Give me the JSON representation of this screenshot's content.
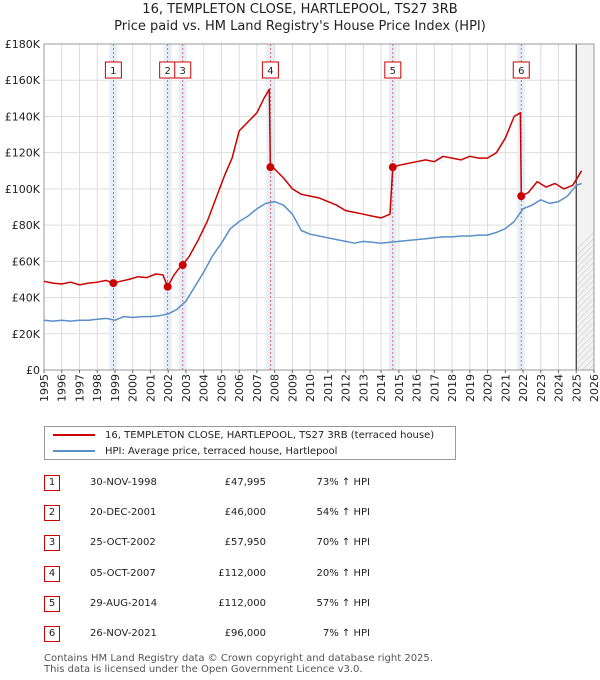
{
  "title": {
    "line1": "16, TEMPLETON CLOSE, HARTLEPOOL, TS27 3RB",
    "line2": "Price paid vs. HM Land Registry's House Price Index (HPI)"
  },
  "colors": {
    "price_line": "#cc0000",
    "hpi_line": "#5b8fc9",
    "sale_shade": "#e8eef8",
    "marker_border": "#cc0000",
    "grid": "#dddddd"
  },
  "legend": {
    "price_label": "16, TEMPLETON CLOSE, HARTLEPOOL, TS27 3RB (terraced house)",
    "hpi_label": "HPI: Average price, terraced house, Hartlepool"
  },
  "sales": [
    {
      "num": "1",
      "date": "30-NOV-1998",
      "price": "£47,995",
      "hpi": "73% ↑ HPI"
    },
    {
      "num": "2",
      "date": "20-DEC-2001",
      "price": "£46,000",
      "hpi": "54% ↑ HPI"
    },
    {
      "num": "3",
      "date": "25-OCT-2002",
      "price": "£57,950",
      "hpi": "70% ↑ HPI"
    },
    {
      "num": "4",
      "date": "05-OCT-2007",
      "price": "£112,000",
      "hpi": "20% ↑ HPI"
    },
    {
      "num": "5",
      "date": "29-AUG-2014",
      "price": "£112,000",
      "hpi": "57% ↑ HPI"
    },
    {
      "num": "6",
      "date": "26-NOV-2021",
      "price": "£96,000",
      "hpi": "7% ↑ HPI"
    }
  ],
  "footer": {
    "line1": "Contains HM Land Registry data © Crown copyright and database right 2025.",
    "line2": "This data is licensed under the Open Government Licence v3.0."
  },
  "chart_data": {
    "type": "line",
    "title": "16, TEMPLETON CLOSE, HARTLEPOOL, TS27 3RB",
    "subtitle": "Price paid vs. HM Land Registry's House Price Index (HPI)",
    "xlabel": "",
    "ylabel": "",
    "xlim": [
      1995,
      2026
    ],
    "ylim": [
      0,
      180000
    ],
    "grid": true,
    "legend_position": "below",
    "yticks": [
      0,
      20000,
      40000,
      60000,
      80000,
      100000,
      120000,
      140000,
      160000,
      180000
    ],
    "ytick_labels": [
      "£0",
      "£20K",
      "£40K",
      "£60K",
      "£80K",
      "£100K",
      "£120K",
      "£140K",
      "£160K",
      "£180K"
    ],
    "xticks": [
      1995,
      1996,
      1997,
      1998,
      1999,
      2000,
      2001,
      2002,
      2003,
      2004,
      2005,
      2006,
      2007,
      2008,
      2009,
      2010,
      2011,
      2012,
      2013,
      2014,
      2015,
      2016,
      2017,
      2018,
      2019,
      2020,
      2021,
      2022,
      2023,
      2024,
      2025,
      2026
    ],
    "sale_points": [
      {
        "label": "1",
        "x": 1998.91,
        "y": 47995
      },
      {
        "label": "2",
        "x": 2001.97,
        "y": 46000
      },
      {
        "label": "3",
        "x": 2002.82,
        "y": 57950
      },
      {
        "label": "4",
        "x": 2007.76,
        "y": 112000
      },
      {
        "label": "5",
        "x": 2014.66,
        "y": 112000
      },
      {
        "label": "6",
        "x": 2021.9,
        "y": 96000
      }
    ],
    "series": [
      {
        "name": "16, TEMPLETON CLOSE, HARTLEPOOL, TS27 3RB (terraced house)",
        "x": [
          1995,
          1995.5,
          1996,
          1996.5,
          1997,
          1997.5,
          1998,
          1998.5,
          1998.91,
          1999.3,
          1999.8,
          2000.3,
          2000.8,
          2001.3,
          2001.7,
          2001.97,
          2002.3,
          2002.6,
          2002.82,
          2003.2,
          2003.7,
          2004.2,
          2004.7,
          2005.2,
          2005.6,
          2006.0,
          2006.5,
          2007.0,
          2007.4,
          2007.7,
          2007.76,
          2008.0,
          2008.5,
          2009.0,
          2009.5,
          2010.0,
          2010.5,
          2011.0,
          2011.5,
          2012.0,
          2012.5,
          2013.0,
          2013.5,
          2014.0,
          2014.5,
          2014.66,
          2015.0,
          2015.5,
          2016.0,
          2016.5,
          2017.0,
          2017.5,
          2018.0,
          2018.5,
          2019.0,
          2019.5,
          2020.0,
          2020.5,
          2021.0,
          2021.5,
          2021.85,
          2021.9,
          2022.3,
          2022.8,
          2023.3,
          2023.8,
          2024.3,
          2024.8,
          2025.3
        ],
        "y": [
          49000,
          48000,
          47500,
          48500,
          47000,
          48000,
          48500,
          49500,
          47995,
          49000,
          50000,
          51500,
          51000,
          53000,
          52500,
          46000,
          52000,
          56000,
          57950,
          63000,
          72000,
          82000,
          95000,
          108000,
          117000,
          132000,
          137000,
          142000,
          150000,
          155000,
          112000,
          111000,
          106000,
          100000,
          97000,
          96000,
          95000,
          93000,
          91000,
          88000,
          87000,
          86000,
          85000,
          84000,
          86000,
          112000,
          113000,
          114000,
          115000,
          116000,
          115000,
          118000,
          117000,
          116000,
          118000,
          117000,
          117000,
          120000,
          128000,
          140000,
          142000,
          96000,
          98000,
          104000,
          101000,
          103000,
          100000,
          102000,
          110000
        ]
      },
      {
        "name": "HPI: Average price, terraced house, Hartlepool",
        "x": [
          1995,
          1995.5,
          1996,
          1996.5,
          1997,
          1997.5,
          1998,
          1998.5,
          1999,
          1999.5,
          2000,
          2000.5,
          2001,
          2001.5,
          2002,
          2002.5,
          2003,
          2003.5,
          2004,
          2004.5,
          2005,
          2005.5,
          2006,
          2006.5,
          2007,
          2007.5,
          2008,
          2008.5,
          2009,
          2009.5,
          2010,
          2010.5,
          2011,
          2011.5,
          2012,
          2012.5,
          2013,
          2013.5,
          2014,
          2014.5,
          2015,
          2015.5,
          2016,
          2016.5,
          2017,
          2017.5,
          2018,
          2018.5,
          2019,
          2019.5,
          2020,
          2020.5,
          2021,
          2021.5,
          2022,
          2022.5,
          2023,
          2023.5,
          2024,
          2024.5,
          2025,
          2025.3
        ],
        "y": [
          27500,
          27000,
          27500,
          27000,
          27500,
          27500,
          28000,
          28500,
          27500,
          29500,
          29000,
          29500,
          29500,
          30000,
          31000,
          33500,
          38000,
          46000,
          54000,
          63000,
          70000,
          78000,
          82000,
          85000,
          89000,
          92000,
          93000,
          91000,
          86000,
          77000,
          75000,
          74000,
          73000,
          72000,
          71000,
          70000,
          71000,
          70500,
          70000,
          70500,
          71000,
          71500,
          72000,
          72500,
          73000,
          73500,
          73500,
          74000,
          74000,
          74500,
          74500,
          76000,
          78000,
          82000,
          89000,
          91000,
          94000,
          92000,
          93000,
          96000,
          102000,
          103000
        ]
      }
    ]
  }
}
